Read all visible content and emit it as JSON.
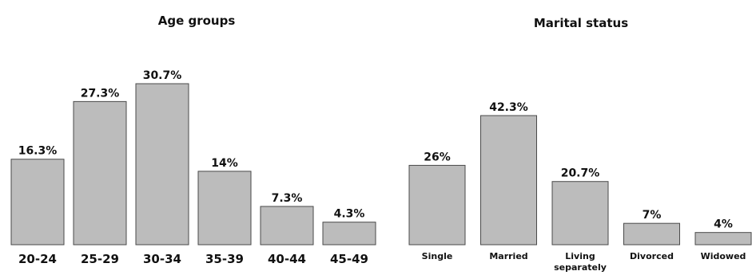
{
  "chart_data": [
    {
      "type": "bar",
      "title": "Age groups",
      "categories": [
        "20-24",
        "25-29",
        "30-34",
        "35-39",
        "40-44",
        "45-49"
      ],
      "values": [
        16.3,
        27.3,
        30.7,
        14,
        7.3,
        4.3
      ],
      "value_labels": [
        "16.3%",
        "27.3%",
        "30.7%",
        "14%",
        "7.3%",
        "4.3%"
      ],
      "xlabel": "",
      "ylabel": "",
      "ylim": [
        0,
        30.7
      ],
      "grid": false,
      "bar_color": "#bcbcbc",
      "edge_color": "#4a4a4a"
    },
    {
      "type": "bar",
      "title": "Marital status",
      "categories": [
        "Single",
        "Married",
        "Living separately",
        "Divorced",
        "Widowed"
      ],
      "values": [
        26,
        42.3,
        20.7,
        7,
        4
      ],
      "value_labels": [
        "26%",
        "42.3%",
        "20.7%",
        "7%",
        "4%"
      ],
      "xlabel": "",
      "ylabel": "",
      "ylim": [
        0,
        42.3
      ],
      "grid": false,
      "bar_color": "#bcbcbc",
      "edge_color": "#4a4a4a"
    }
  ]
}
